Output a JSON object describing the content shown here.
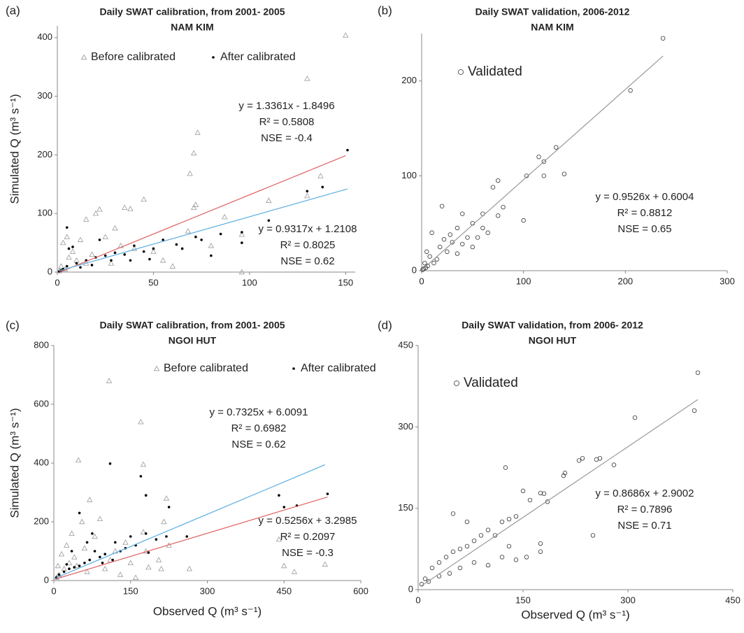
{
  "chart_data": [
    {
      "type": "scatter",
      "label": "(a)",
      "title": [
        "Daily SWAT calibration, from 2001- 2005",
        "NAM KIM"
      ],
      "ylabel": "Simulated Q (m³ s⁻¹)",
      "xlim": [
        0,
        155
      ],
      "xticks": [
        0,
        50,
        100,
        150
      ],
      "ylim": [
        0,
        420
      ],
      "yticks": [
        0,
        100,
        200,
        300,
        400
      ],
      "series": [
        {
          "name": "Before calibrated",
          "marker": "triangle",
          "color": "#999999",
          "x": [
            150,
            130,
            73,
            71,
            69,
            72,
            71,
            68,
            80,
            87,
            96,
            96,
            110,
            137,
            130,
            45,
            35,
            38,
            22,
            20,
            15,
            30,
            25,
            12,
            5,
            3,
            8,
            10,
            2,
            4,
            18,
            40,
            50,
            55,
            60,
            28,
            33,
            15,
            6,
            1
          ],
          "values": [
            404,
            330,
            238,
            203,
            168,
            115,
            110,
            70,
            45,
            94,
            64,
            0,
            122,
            164,
            130,
            124,
            110,
            108,
            107,
            100,
            90,
            75,
            60,
            55,
            60,
            50,
            35,
            20,
            10,
            5,
            30,
            40,
            35,
            20,
            10,
            15,
            45,
            15,
            25,
            2
          ]
        },
        {
          "name": "After calibrated",
          "marker": "dot",
          "color": "#000000",
          "x": [
            151,
            138,
            130,
            110,
            96,
            96,
            85,
            75,
            72,
            62,
            55,
            50,
            45,
            40,
            35,
            30,
            25,
            20,
            15,
            10,
            5,
            5,
            3,
            2,
            8,
            12,
            18,
            28,
            38,
            48,
            65,
            80,
            6,
            22,
            1
          ],
          "values": [
            208,
            145,
            138,
            88,
            68,
            50,
            65,
            55,
            60,
            47,
            55,
            40,
            35,
            45,
            30,
            33,
            28,
            25,
            20,
            15,
            76,
            10,
            5,
            3,
            43,
            8,
            12,
            20,
            20,
            22,
            40,
            28,
            40,
            55,
            1
          ]
        }
      ],
      "trendlines": [
        {
          "slope": 1.3361,
          "intercept": -1.8496,
          "color": "#e06060"
        },
        {
          "slope": 0.9317,
          "intercept": 1.2108,
          "color": "#5aaee0"
        }
      ],
      "annotations": [
        [
          "y = 1.3361x - 1.8496",
          "R² = 0.5808",
          "NSE = -0.4"
        ],
        [
          "y = 0.9317x + 1.2108",
          "R² = 0.8025",
          "NSE = 0.62"
        ]
      ]
    },
    {
      "type": "scatter",
      "label": "(b)",
      "title": [
        "Daily SWAT validation,  2006-2012",
        "NAM KIM"
      ],
      "xlim": [
        0,
        300
      ],
      "xticks": [
        0,
        100,
        200,
        300
      ],
      "ylim": [
        0,
        250
      ],
      "yticks": [
        0,
        100,
        200
      ],
      "series": [
        {
          "name": "Validated",
          "marker": "circle",
          "color": "#333333",
          "x": [
            237,
            205,
            132,
            115,
            120,
            140,
            103,
            120,
            100,
            80,
            75,
            70,
            75,
            65,
            60,
            55,
            50,
            45,
            40,
            35,
            30,
            25,
            20,
            18,
            15,
            12,
            10,
            8,
            6,
            5,
            4,
            3,
            2,
            1,
            50,
            60,
            40,
            28,
            35,
            22
          ],
          "values": [
            245,
            190,
            130,
            120,
            115,
            102,
            100,
            100,
            53,
            67,
            95,
            88,
            58,
            40,
            45,
            35,
            50,
            35,
            28,
            45,
            30,
            20,
            68,
            25,
            12,
            8,
            40,
            15,
            5,
            20,
            3,
            8,
            2,
            1,
            25,
            60,
            60,
            38,
            18,
            33
          ]
        }
      ],
      "trendlines": [
        {
          "slope": 0.9526,
          "intercept": 0.6004,
          "color": "#999999"
        }
      ],
      "annotations": [
        [
          "y = 0.9526x + 0.6004",
          "R² = 0.8812",
          "NSE = 0.65"
        ]
      ]
    },
    {
      "type": "scatter",
      "label": "(c)",
      "title": [
        "Daily SWAT calibration, from 2001- 2005",
        "NGOI HUT"
      ],
      "ylabel": "Simulated Q (m³ s⁻¹)",
      "xlabel": "Observed Q (m³ s⁻¹)",
      "xlim": [
        0,
        600
      ],
      "xticks": [
        0,
        150,
        300,
        450,
        600
      ],
      "ylim": [
        0,
        800
      ],
      "yticks": [
        0,
        200,
        400,
        600,
        800
      ],
      "series": [
        {
          "name": "Before calibrated",
          "marker": "triangle",
          "color": "#999999",
          "x": [
            108,
            170,
            175,
            48,
            70,
            220,
            215,
            225,
            175,
            180,
            205,
            185,
            210,
            265,
            440,
            450,
            470,
            530,
            90,
            80,
            60,
            40,
            30,
            20,
            10,
            5,
            100,
            130,
            150,
            120,
            55,
            35,
            25,
            15,
            65,
            45,
            8,
            110,
            140,
            160
          ],
          "values": [
            680,
            540,
            395,
            410,
            275,
            280,
            200,
            120,
            165,
            100,
            70,
            45,
            40,
            40,
            140,
            50,
            30,
            55,
            210,
            150,
            110,
            80,
            60,
            40,
            20,
            10,
            40,
            20,
            60,
            100,
            200,
            160,
            120,
            90,
            30,
            50,
            50,
            70,
            130,
            10
          ]
        },
        {
          "name": "After calibrated",
          "marker": "dot",
          "color": "#000000",
          "x": [
            535,
            440,
            450,
            475,
            110,
            170,
            180,
            225,
            260,
            220,
            200,
            180,
            160,
            140,
            130,
            120,
            100,
            90,
            80,
            70,
            60,
            50,
            50,
            40,
            30,
            20,
            10,
            5,
            185,
            150,
            75,
            65,
            95,
            115,
            35,
            25
          ],
          "values": [
            295,
            290,
            250,
            255,
            398,
            355,
            290,
            250,
            150,
            150,
            140,
            160,
            120,
            110,
            100,
            130,
            90,
            80,
            100,
            70,
            60,
            230,
            50,
            45,
            40,
            30,
            20,
            10,
            95,
            150,
            160,
            130,
            60,
            70,
            100,
            55
          ]
        }
      ],
      "trendlines": [
        {
          "slope": 0.7325,
          "intercept": 6.0091,
          "color": "#5aaee0"
        },
        {
          "slope": 0.5256,
          "intercept": 3.2985,
          "color": "#e06060"
        }
      ],
      "annotations": [
        [
          "y = 0.7325x + 6.0091",
          "R² = 0.6982",
          "NSE = 0.62"
        ],
        [
          "y = 0.5256x + 3.2985",
          "R² = 0.2097",
          "NSE = -0.3"
        ]
      ]
    },
    {
      "type": "scatter",
      "label": "(d)",
      "title": [
        "Daily SWAT validation, from 2006- 2012",
        "NGOI HUT"
      ],
      "xlabel": "Observed Q (m³ s⁻¹)",
      "xlim": [
        0,
        450
      ],
      "xticks": [
        0,
        150,
        300,
        450
      ],
      "ylim": [
        0,
        450
      ],
      "yticks": [
        0,
        150,
        300,
        450
      ],
      "series": [
        {
          "name": "Validated",
          "marker": "circle",
          "color": "#333333",
          "x": [
            400,
            395,
            310,
            235,
            230,
            260,
            255,
            280,
            250,
            210,
            208,
            125,
            180,
            185,
            175,
            150,
            160,
            140,
            130,
            120,
            100,
            90,
            80,
            70,
            60,
            50,
            50,
            40,
            30,
            20,
            10,
            5,
            175,
            175,
            155,
            140,
            120,
            100,
            80,
            60,
            45,
            30,
            15,
            70,
            110,
            130
          ],
          "values": [
            400,
            330,
            317,
            242,
            238,
            242,
            240,
            230,
            100,
            215,
            210,
            225,
            177,
            162,
            178,
            182,
            165,
            135,
            130,
            125,
            110,
            100,
            90,
            80,
            75,
            140,
            70,
            60,
            50,
            40,
            20,
            10,
            85,
            70,
            60,
            55,
            60,
            45,
            50,
            40,
            30,
            25,
            15,
            125,
            100,
            80
          ]
        }
      ],
      "trendlines": [
        {
          "slope": 0.8686,
          "intercept": 2.9002,
          "color": "#999999"
        }
      ],
      "annotations": [
        [
          "y = 0.8686x + 2.9002",
          "R² = 0.7896",
          "NSE = 0.71"
        ]
      ]
    }
  ]
}
